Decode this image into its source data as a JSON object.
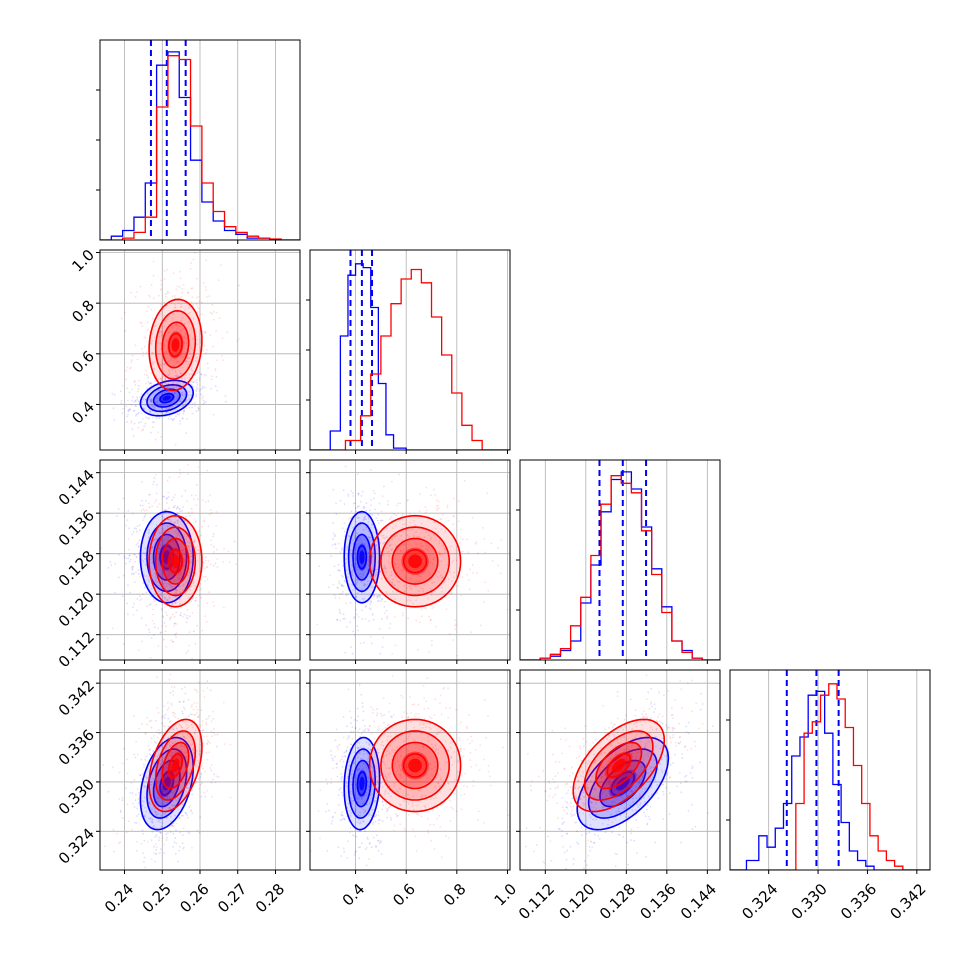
{
  "chart_data": {
    "type": "corner",
    "parameters": [
      {
        "key": "p0",
        "range": [
          0.2335,
          0.2865
        ],
        "ticks": [
          0.24,
          0.25,
          0.26,
          0.27,
          0.28
        ],
        "tick_labels": [
          "0.24",
          "0.25",
          "0.26",
          "0.27",
          "0.28"
        ]
      },
      {
        "key": "p1",
        "range": [
          0.22,
          1.01
        ],
        "ticks": [
          0.4,
          0.6,
          0.8,
          1.0
        ],
        "tick_labels": [
          "0.4",
          "0.6",
          "0.8",
          "1.0"
        ]
      },
      {
        "key": "p2",
        "range": [
          0.107,
          0.1465
        ],
        "ticks": [
          0.112,
          0.12,
          0.128,
          0.136,
          0.144
        ],
        "tick_labels": [
          "0.112",
          "0.120",
          "0.128",
          "0.136",
          "0.144"
        ]
      },
      {
        "key": "p3",
        "range": [
          0.3193,
          0.3436
        ],
        "ticks": [
          0.324,
          0.33,
          0.336,
          0.342
        ],
        "tick_labels": [
          "0.324",
          "0.330",
          "0.336",
          "0.342"
        ]
      }
    ],
    "series": [
      {
        "color": "#0000ff",
        "quantiles": [
          [
            0.247,
            0.2512,
            0.2562
          ],
          [
            0.38,
            0.425,
            0.465
          ],
          [
            0.1227,
            0.1273,
            0.1319
          ],
          [
            0.3262,
            0.3298,
            0.3325
          ]
        ],
        "marginals": [
          {
            "edges": [
              0.2335,
              0.2365,
              0.2395,
              0.2425,
              0.2455,
              0.2485,
              0.2515,
              0.2545,
              0.2575,
              0.2605,
              0.2635,
              0.2665,
              0.2695,
              0.2725,
              0.2755,
              0.2785,
              0.2815,
              0.2865
            ],
            "counts": [
              0,
              0.02,
              0.05,
              0.12,
              0.3,
              0.92,
              0.99,
              0.75,
              0.42,
              0.2,
              0.1,
              0.05,
              0.03,
              0.01,
              0.01,
              0,
              0
            ]
          },
          {
            "edges": [
              0.22,
              0.3,
              0.34,
              0.37,
              0.4,
              0.43,
              0.46,
              0.49,
              0.52,
              0.55,
              0.6,
              1.01
            ],
            "counts": [
              0,
              0.1,
              0.6,
              0.92,
              0.98,
              0.96,
              0.75,
              0.35,
              0.08,
              0.01,
              0
            ]
          },
          {
            "edges": [
              0.107,
              0.111,
              0.113,
              0.115,
              0.117,
              0.119,
              0.121,
              0.123,
              0.125,
              0.127,
              0.129,
              0.131,
              0.133,
              0.135,
              0.137,
              0.139,
              0.141,
              0.143,
              0.1465
            ],
            "counts": [
              0,
              0.01,
              0.02,
              0.05,
              0.1,
              0.3,
              0.5,
              0.78,
              0.95,
              0.99,
              0.9,
              0.7,
              0.48,
              0.28,
              0.1,
              0.05,
              0.01,
              0
            ]
          },
          {
            "edges": [
              0.3193,
              0.3213,
              0.3228,
              0.3238,
              0.3248,
              0.3258,
              0.3268,
              0.3278,
              0.3288,
              0.3298,
              0.3308,
              0.3318,
              0.3328,
              0.3338,
              0.3348,
              0.3358,
              0.3368,
              0.3436
            ],
            "counts": [
              0,
              0.05,
              0.18,
              0.12,
              0.22,
              0.35,
              0.6,
              0.7,
              0.92,
              0.94,
              0.72,
              0.45,
              0.25,
              0.1,
              0.05,
              0.02,
              0
            ]
          }
        ]
      },
      {
        "color": "#ff0000",
        "quantiles": [],
        "marginals": [
          {
            "edges": [
              0.2335,
              0.2395,
              0.2425,
              0.2455,
              0.2485,
              0.2515,
              0.2545,
              0.2575,
              0.2605,
              0.2635,
              0.2665,
              0.2695,
              0.2725,
              0.2755,
              0.2785,
              0.2815,
              0.2865
            ],
            "counts": [
              0,
              0.01,
              0.04,
              0.12,
              0.7,
              0.97,
              0.95,
              0.6,
              0.3,
              0.15,
              0.07,
              0.04,
              0.02,
              0.01,
              0.005,
              0
            ]
          },
          {
            "edges": [
              0.22,
              0.36,
              0.42,
              0.46,
              0.5,
              0.54,
              0.58,
              0.62,
              0.66,
              0.7,
              0.74,
              0.78,
              0.82,
              0.86,
              0.9,
              1.01
            ],
            "counts": [
              0,
              0.05,
              0.18,
              0.4,
              0.6,
              0.77,
              0.9,
              0.95,
              0.88,
              0.7,
              0.5,
              0.3,
              0.13,
              0.05,
              0
            ]
          },
          {
            "edges": [
              0.107,
              0.111,
              0.113,
              0.115,
              0.117,
              0.119,
              0.121,
              0.123,
              0.125,
              0.127,
              0.129,
              0.131,
              0.133,
              0.135,
              0.137,
              0.139,
              0.141,
              0.143,
              0.1465
            ],
            "counts": [
              0,
              0.01,
              0.03,
              0.06,
              0.18,
              0.33,
              0.55,
              0.82,
              0.97,
              0.93,
              0.88,
              0.68,
              0.45,
              0.25,
              0.1,
              0.04,
              0.01,
              0
            ]
          },
          {
            "edges": [
              0.3193,
              0.3273,
              0.3283,
              0.3293,
              0.3303,
              0.3313,
              0.3323,
              0.3333,
              0.3343,
              0.3353,
              0.3363,
              0.3373,
              0.3383,
              0.3393,
              0.3403,
              0.3436
            ],
            "counts": [
              0,
              0.35,
              0.72,
              0.78,
              0.92,
              0.98,
              0.9,
              0.75,
              0.55,
              0.35,
              0.18,
              0.1,
              0.05,
              0.02,
              0
            ]
          }
        ]
      }
    ],
    "joint": [
      {
        "color": "#0000ff",
        "x": 0,
        "y": 1,
        "center": [
          0.2512,
          0.425
        ],
        "sigma": [
          0.0035,
          0.035
        ],
        "rho": 0.3
      },
      {
        "color": "#0000ff",
        "x": 0,
        "y": 2,
        "center": [
          0.2512,
          0.1273
        ],
        "sigma": [
          0.0035,
          0.0045
        ],
        "rho": 0.0
      },
      {
        "color": "#0000ff",
        "x": 1,
        "y": 2,
        "center": [
          0.425,
          0.1273
        ],
        "sigma": [
          0.035,
          0.0045
        ],
        "rho": 0.0
      },
      {
        "color": "#0000ff",
        "x": 0,
        "y": 3,
        "center": [
          0.2512,
          0.3298
        ],
        "sigma": [
          0.0035,
          0.0028
        ],
        "rho": 0.35
      },
      {
        "color": "#0000ff",
        "x": 1,
        "y": 3,
        "center": [
          0.425,
          0.3298
        ],
        "sigma": [
          0.035,
          0.0028
        ],
        "rho": 0.1
      },
      {
        "color": "#0000ff",
        "x": 2,
        "y": 3,
        "center": [
          0.1273,
          0.3298
        ],
        "sigma": [
          0.0045,
          0.0028
        ],
        "rho": 0.55
      },
      {
        "color": "#ff0000",
        "x": 0,
        "y": 1,
        "center": [
          0.2535,
          0.635
        ],
        "sigma": [
          0.0035,
          0.09
        ],
        "rho": 0.1
      },
      {
        "color": "#ff0000",
        "x": 0,
        "y": 2,
        "center": [
          0.2535,
          0.1265
        ],
        "sigma": [
          0.0035,
          0.0045
        ],
        "rho": 0.0
      },
      {
        "color": "#ff0000",
        "x": 1,
        "y": 2,
        "center": [
          0.635,
          0.1265
        ],
        "sigma": [
          0.09,
          0.0045
        ],
        "rho": 0.0
      },
      {
        "color": "#ff0000",
        "x": 0,
        "y": 3,
        "center": [
          0.2535,
          0.332
        ],
        "sigma": [
          0.0035,
          0.0028
        ],
        "rho": 0.4
      },
      {
        "color": "#ff0000",
        "x": 1,
        "y": 3,
        "center": [
          0.635,
          0.332
        ],
        "sigma": [
          0.09,
          0.0028
        ],
        "rho": 0.0
      },
      {
        "color": "#ff0000",
        "x": 2,
        "y": 3,
        "center": [
          0.1265,
          0.332
        ],
        "sigma": [
          0.0045,
          0.0028
        ],
        "rho": 0.55
      }
    ],
    "xlabel": "",
    "ylabel": "",
    "title": "",
    "grid": true
  }
}
